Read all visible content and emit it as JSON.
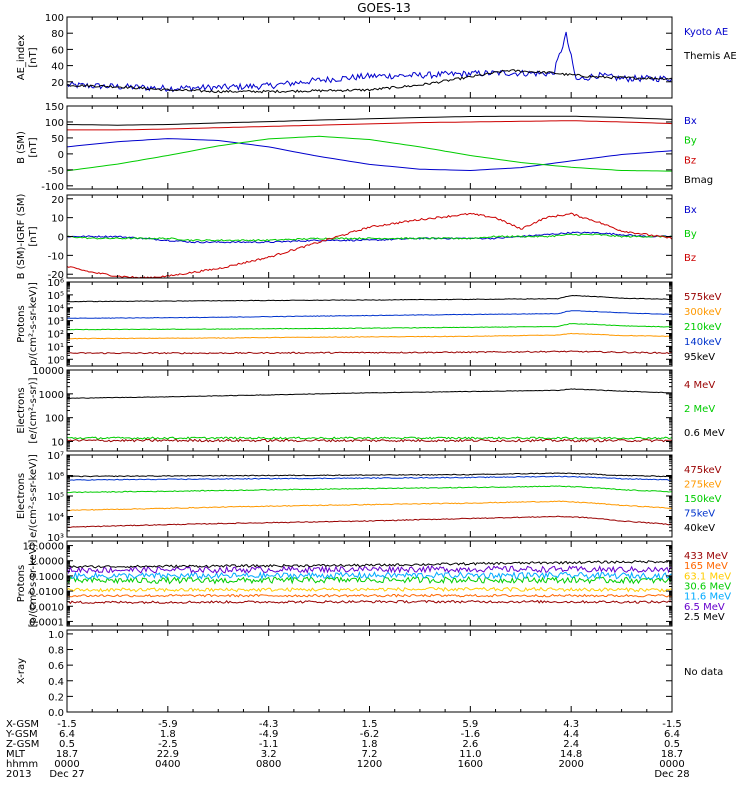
{
  "title": "GOES-13",
  "chart_data": [
    {
      "type": "line",
      "ylabel": [
        "AE_index",
        "[nT]"
      ],
      "ylim": [
        0,
        100
      ],
      "scale": "linear",
      "yticks": [
        20,
        40,
        60,
        80,
        100
      ],
      "ticklabels": [
        "20",
        "40",
        "60",
        "80",
        "100"
      ],
      "x_hours": [
        0,
        2,
        4,
        6,
        8,
        10,
        12,
        14,
        16,
        17.5,
        19.3,
        19.8,
        20.2,
        21,
        22,
        24
      ],
      "series": [
        {
          "name": "Kyoto AE",
          "color": "#0000cc",
          "noise": 4,
          "values": [
            16,
            14,
            12,
            13,
            15,
            22,
            27,
            28,
            30,
            31,
            30,
            78,
            22,
            28,
            24,
            24
          ]
        },
        {
          "name": "Themis AE",
          "color": "#000000",
          "noise": 1.5,
          "values": [
            16,
            14,
            10,
            8,
            8,
            9,
            10,
            16,
            26,
            34,
            31,
            29,
            28,
            26,
            25,
            24
          ]
        }
      ]
    },
    {
      "type": "line",
      "ylabel": [
        "B (SM)",
        "[nT]"
      ],
      "ylim": [
        -110,
        150
      ],
      "scale": "linear",
      "yticks": [
        -100,
        -50,
        0,
        50,
        100,
        150
      ],
      "ticklabels": [
        "-100",
        "-50",
        "0",
        "50",
        "100",
        "150"
      ],
      "x_hours": [
        0,
        2,
        4,
        6,
        8,
        10,
        12,
        14,
        16,
        18,
        20,
        22,
        24
      ],
      "series": [
        {
          "name": "Bx",
          "color": "#0000cc",
          "noise": 0,
          "values": [
            22,
            38,
            48,
            42,
            22,
            -8,
            -33,
            -48,
            -52,
            -43,
            -22,
            -2,
            10
          ]
        },
        {
          "name": "By",
          "color": "#00cc00",
          "noise": 0,
          "values": [
            -53,
            -32,
            -5,
            25,
            47,
            55,
            45,
            22,
            -5,
            -27,
            -42,
            -52,
            -54
          ]
        },
        {
          "name": "Bz",
          "color": "#cc0000",
          "noise": 0,
          "values": [
            75,
            75,
            78,
            82,
            86,
            90,
            94,
            98,
            100,
            102,
            104,
            100,
            95
          ]
        },
        {
          "name": "Bmag",
          "color": "#000000",
          "noise": 0,
          "values": [
            92,
            90,
            92,
            97,
            101,
            106,
            110,
            114,
            117,
            118,
            118,
            114,
            108
          ]
        }
      ]
    },
    {
      "type": "line",
      "ylabel": [
        "B (SM)-IGRF (SM)",
        "[nT]"
      ],
      "ylim": [
        -22,
        22
      ],
      "scale": "linear",
      "yticks": [
        -20,
        -10,
        0,
        10,
        20
      ],
      "ticklabels": [
        "-20",
        "-10",
        "0",
        "10",
        "20"
      ],
      "x_hours": [
        0,
        1,
        2,
        3,
        4,
        5,
        6,
        8,
        10,
        12,
        14,
        16,
        17,
        18,
        19,
        20,
        21,
        22,
        23,
        24
      ],
      "series": [
        {
          "name": "Bx",
          "color": "#0000cc",
          "noise": 0.4,
          "values": [
            0,
            0,
            0,
            -1,
            -2,
            -3,
            -3,
            -3,
            -2,
            -2,
            -1,
            -1,
            -1,
            0,
            1,
            2,
            2,
            1,
            0,
            0
          ]
        },
        {
          "name": "By",
          "color": "#00cc00",
          "noise": 0.4,
          "values": [
            0,
            -1,
            -1,
            -1,
            -1,
            -2,
            -2,
            -2,
            -1,
            -1,
            -1,
            -1,
            0,
            0,
            0,
            1,
            1,
            0,
            0,
            0
          ]
        },
        {
          "name": "Bz",
          "color": "#cc0000",
          "noise": 0.5,
          "values": [
            -16,
            -19,
            -21,
            -22,
            -21,
            -19,
            -17,
            -11,
            -3,
            5,
            9,
            12,
            10,
            4,
            10,
            12,
            8,
            3,
            1,
            -1
          ]
        }
      ]
    },
    {
      "type": "line",
      "ylabel": [
        "Protons",
        "p/(cm²-s-sr-keV)]"
      ],
      "ylim": [
        0.3,
        1000000
      ],
      "scale": "log",
      "yticks": [
        1,
        10,
        100,
        1000,
        10000,
        100000,
        1000000
      ],
      "ticklabels": [
        "10⁰",
        "10¹",
        "10²",
        "10³",
        "10⁴",
        "10⁵",
        "10⁶"
      ],
      "x_hours": [
        0,
        6,
        12,
        16,
        19.5,
        20,
        22,
        24
      ],
      "series": [
        {
          "name": "575keV",
          "color": "#990000",
          "noise": 0.05,
          "values": [
            3,
            3,
            3.3,
            3.5,
            4,
            4,
            3.5,
            3
          ]
        },
        {
          "name": "300keV",
          "color": "#ff9900",
          "noise": 0.02,
          "values": [
            40,
            45,
            55,
            60,
            75,
            100,
            70,
            60
          ]
        },
        {
          "name": "210keV",
          "color": "#00cc00",
          "noise": 0.02,
          "values": [
            200,
            220,
            260,
            300,
            350,
            600,
            400,
            320
          ]
        },
        {
          "name": "140keV",
          "color": "#0033cc",
          "noise": 0.02,
          "values": [
            1500,
            1800,
            2500,
            3000,
            3500,
            6000,
            4000,
            3000
          ]
        },
        {
          "name": "95keV",
          "color": "#000000",
          "noise": 0.02,
          "values": [
            30000,
            35000,
            40000,
            45000,
            50000,
            90000,
            55000,
            45000
          ]
        }
      ]
    },
    {
      "type": "line",
      "ylabel": [
        "Electrons",
        "[e/(cm²-s-sr)]"
      ],
      "ylim": [
        4,
        10000
      ],
      "scale": "log",
      "yticks": [
        10,
        100,
        1000,
        10000
      ],
      "ticklabels": [
        "10",
        "100",
        "1000",
        "10000"
      ],
      "x_hours": [
        0,
        4,
        8,
        12,
        16,
        19.5,
        20,
        22,
        24
      ],
      "series": [
        {
          "name": "4 MeV",
          "color": "#990000",
          "noise": 0.05,
          "values": [
            11,
            11,
            11,
            11,
            11,
            11,
            11,
            11,
            11
          ]
        },
        {
          "name": "2 MeV",
          "color": "#00cc00",
          "noise": 0.04,
          "values": [
            14,
            14,
            14,
            14,
            14,
            14,
            14,
            14,
            14
          ]
        },
        {
          "name": "0.6 MeV",
          "color": "#000000",
          "noise": 0.01,
          "values": [
            650,
            750,
            900,
            1100,
            1250,
            1400,
            1600,
            1300,
            1100
          ]
        }
      ]
    },
    {
      "type": "line",
      "ylabel": [
        "Electrons",
        "e/(cm²-s-sr-keV)]"
      ],
      "ylim": [
        1000,
        10000000
      ],
      "scale": "log",
      "yticks": [
        1000,
        10000,
        100000,
        1000000,
        10000000
      ],
      "ticklabels": [
        "10³",
        "10⁴",
        "10⁵",
        "10⁶",
        "10⁷"
      ],
      "x_hours": [
        0,
        4,
        8,
        12,
        16,
        19.5,
        20.5,
        22,
        24
      ],
      "series": [
        {
          "name": "475keV",
          "color": "#990000",
          "noise": 0.02,
          "values": [
            3000,
            4000,
            5000,
            6000,
            8000,
            10000,
            9000,
            6000,
            4000
          ]
        },
        {
          "name": "275keV",
          "color": "#ff9900",
          "noise": 0.02,
          "values": [
            20000,
            25000,
            32000,
            38000,
            45000,
            55000,
            48000,
            35000,
            25000
          ]
        },
        {
          "name": "150keV",
          "color": "#00cc00",
          "noise": 0.02,
          "values": [
            150000,
            170000,
            200000,
            230000,
            260000,
            300000,
            270000,
            200000,
            160000
          ]
        },
        {
          "name": "75keV",
          "color": "#0033cc",
          "noise": 0.02,
          "values": [
            600000,
            650000,
            700000,
            750000,
            800000,
            900000,
            850000,
            700000,
            600000
          ]
        },
        {
          "name": "40keV",
          "color": "#000000",
          "noise": 0.02,
          "values": [
            900000,
            950000,
            1000000,
            1050000,
            1100000,
            1300000,
            1200000,
            1000000,
            900000
          ]
        }
      ]
    },
    {
      "type": "line",
      "ylabel": [
        "Protons",
        "[p/(cm²-s-sr-keV)]"
      ],
      "ylim": [
        5e-05,
        20
      ],
      "scale": "log",
      "yticks": [
        0.0001,
        0.001,
        0.01,
        0.1,
        1,
        10
      ],
      "ticklabels": [
        "0.0001",
        "0.0010",
        "0.0100",
        "0.1000",
        "1.0000",
        "10.0000"
      ],
      "x_hours": [
        0,
        6,
        12,
        18,
        24
      ],
      "series": [
        {
          "name": "433 MeV",
          "color": "#990000",
          "noise": 0.08,
          "values": [
            0.0018,
            0.0019,
            0.002,
            0.002,
            0.0019
          ]
        },
        {
          "name": "165 MeV",
          "color": "#ff6600",
          "noise": 0.08,
          "values": [
            0.005,
            0.005,
            0.005,
            0.005,
            0.005
          ]
        },
        {
          "name": "63.1 MeV",
          "color": "#ffcc00",
          "noise": 0.12,
          "values": [
            0.012,
            0.012,
            0.013,
            0.013,
            0.012
          ]
        },
        {
          "name": "30.6 MeV",
          "color": "#00cc00",
          "noise": 0.2,
          "values": [
            0.05,
            0.05,
            0.055,
            0.055,
            0.05
          ]
        },
        {
          "name": "11.6 MeV",
          "color": "#00aaff",
          "noise": 0.2,
          "values": [
            0.1,
            0.1,
            0.11,
            0.11,
            0.1
          ]
        },
        {
          "name": "6.5 MeV",
          "color": "#6600cc",
          "noise": 0.2,
          "values": [
            0.25,
            0.25,
            0.28,
            0.28,
            0.25
          ]
        },
        {
          "name": "2.5 MeV",
          "color": "#000000",
          "noise": 0.08,
          "values": [
            0.4,
            0.45,
            0.5,
            0.7,
            0.9
          ]
        }
      ]
    },
    {
      "type": "line",
      "ylabel": [
        "X-ray",
        ""
      ],
      "ylim": [
        0,
        1.05
      ],
      "scale": "linear",
      "yticks": [
        0,
        0.2,
        0.4,
        0.6,
        0.8,
        1.0
      ],
      "ticklabels": [
        "0.0",
        "0.2",
        "0.4",
        "0.6",
        "0.8",
        "1.0"
      ],
      "x_hours": [],
      "series": [],
      "legend_text": "No data"
    }
  ],
  "ephemeris": {
    "row_labels": [
      "X-GSM",
      "Y-GSM",
      "Z-GSM",
      "MLT",
      "hhmm",
      "2013"
    ],
    "tick_hours": [
      0,
      4,
      8,
      12,
      16,
      20,
      24
    ],
    "columns": [
      [
        "-1.5",
        "6.4",
        "0.5",
        "18.7",
        "0000",
        "Dec 27"
      ],
      [
        "-5.9",
        "1.8",
        "-2.5",
        "22.9",
        "0400",
        ""
      ],
      [
        "-4.3",
        "-4.9",
        "-1.1",
        "3.2",
        "0800",
        ""
      ],
      [
        "1.5",
        "-6.2",
        "1.8",
        "7.2",
        "1200",
        ""
      ],
      [
        "5.9",
        "-1.6",
        "2.6",
        "11.0",
        "1600",
        ""
      ],
      [
        "4.3",
        "4.4",
        "2.4",
        "14.8",
        "2000",
        ""
      ],
      [
        "-1.5",
        "6.4",
        "0.5",
        "18.7",
        "0000",
        "Dec 28"
      ]
    ]
  }
}
